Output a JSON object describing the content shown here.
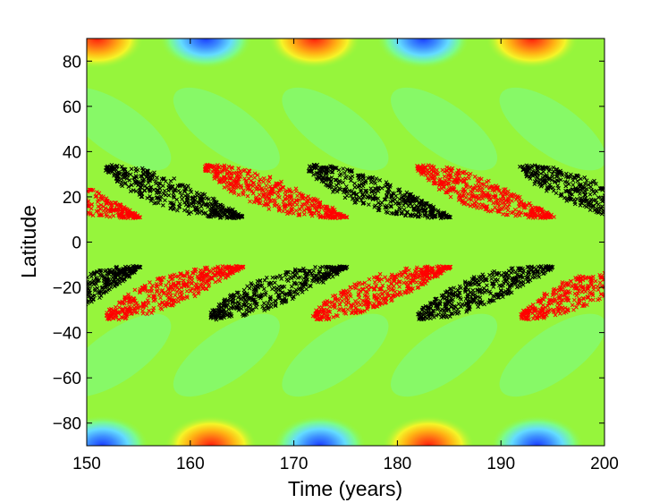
{
  "chart_data": {
    "type": "scatter",
    "title": "",
    "xlabel": "Time (years)",
    "ylabel": "Latitude",
    "xlim": [
      150,
      200
    ],
    "ylim": [
      -90,
      90
    ],
    "xticks": [
      150,
      160,
      170,
      180,
      190,
      200
    ],
    "yticks": [
      -80,
      -60,
      -40,
      -20,
      0,
      20,
      40,
      60,
      80
    ],
    "xtick_labels": [
      "150",
      "160",
      "170",
      "180",
      "190",
      "200"
    ],
    "ytick_labels": [
      "−80",
      "−60",
      "−40",
      "−20",
      "0",
      "20",
      "40",
      "60",
      "80"
    ],
    "grid": false,
    "background": {
      "kind": "filled-contour",
      "base_color": "#96f53c",
      "colormap": [
        "#1a3cff",
        "#3c8cff",
        "#64dcff",
        "#7cfc8a",
        "#96f53c",
        "#f5f528",
        "#ffb414",
        "#ff6414",
        "#ff1e0a"
      ],
      "cycle_years": 21,
      "polar_patches": [
        {
          "hemisphere": "north",
          "center_x": 151,
          "sign": 1
        },
        {
          "hemisphere": "north",
          "center_x": 161.5,
          "sign": -1
        },
        {
          "hemisphere": "north",
          "center_x": 172,
          "sign": 1
        },
        {
          "hemisphere": "north",
          "center_x": 182.5,
          "sign": -1
        },
        {
          "hemisphere": "north",
          "center_x": 193,
          "sign": 1
        },
        {
          "hemisphere": "south",
          "center_x": 151.5,
          "sign": -1
        },
        {
          "hemisphere": "south",
          "center_x": 162,
          "sign": 1
        },
        {
          "hemisphere": "south",
          "center_x": 172.5,
          "sign": -1
        },
        {
          "hemisphere": "south",
          "center_x": 183,
          "sign": 1
        },
        {
          "hemisphere": "south",
          "center_x": 193.5,
          "sign": -1
        }
      ]
    },
    "series": [
      {
        "color": "#000000",
        "marker": "x",
        "wings": [
          {
            "x_start": 152,
            "x_end": 165,
            "lat_start": 33,
            "lat_end": 11
          },
          {
            "x_start": 171.5,
            "x_end": 185,
            "lat_start": 33,
            "lat_end": 11
          },
          {
            "x_start": 192,
            "x_end": 205,
            "lat_start": 33,
            "lat_end": 11
          },
          {
            "x_start": 145,
            "x_end": 155,
            "lat_start": -33,
            "lat_end": -11
          },
          {
            "x_start": 162,
            "x_end": 175,
            "lat_start": -33,
            "lat_end": -11
          },
          {
            "x_start": 182,
            "x_end": 195,
            "lat_start": -33,
            "lat_end": -11
          }
        ]
      },
      {
        "color": "#ff0000",
        "marker": "x",
        "wings": [
          {
            "x_start": 142,
            "x_end": 155,
            "lat_start": 33,
            "lat_end": 11
          },
          {
            "x_start": 161.5,
            "x_end": 175,
            "lat_start": 33,
            "lat_end": 11
          },
          {
            "x_start": 182,
            "x_end": 195,
            "lat_start": 33,
            "lat_end": 11
          },
          {
            "x_start": 152,
            "x_end": 165,
            "lat_start": -33,
            "lat_end": -11
          },
          {
            "x_start": 172,
            "x_end": 185,
            "lat_start": -33,
            "lat_end": -11
          },
          {
            "x_start": 192,
            "x_end": 205,
            "lat_start": -33,
            "lat_end": -11
          }
        ]
      }
    ]
  }
}
